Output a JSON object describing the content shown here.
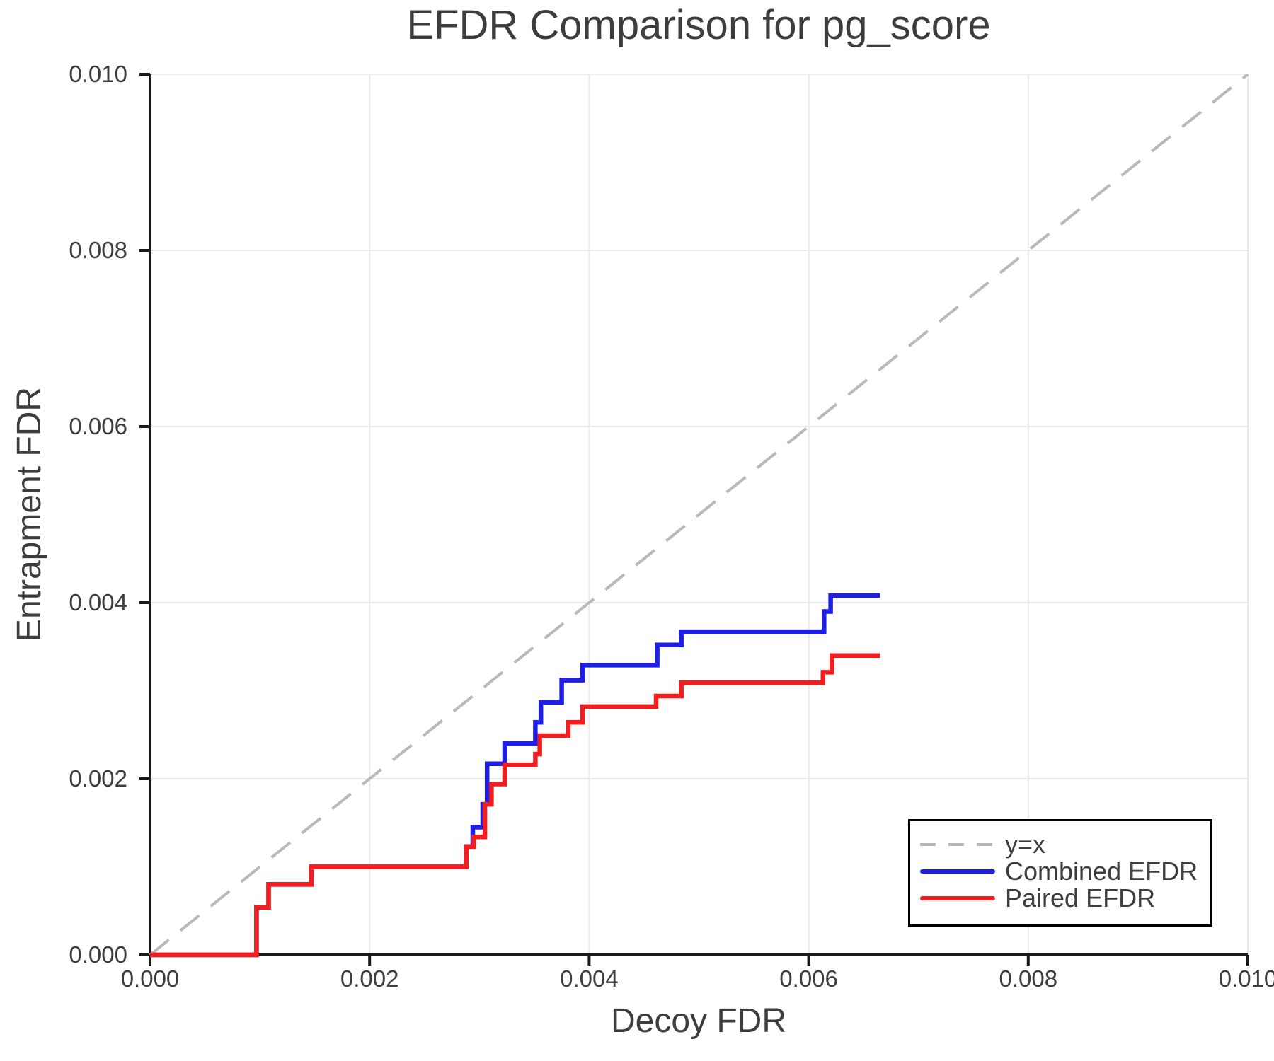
{
  "chart_data": {
    "type": "line",
    "title": "EFDR Comparison for pg_score",
    "xlabel": "Decoy FDR",
    "ylabel": "Entrapment FDR",
    "xlim": [
      0.0,
      0.01
    ],
    "ylim": [
      0.0,
      0.01
    ],
    "grid": true,
    "legend_position": "lower right",
    "x_ticks": [
      0.0,
      0.002,
      0.004,
      0.006,
      0.008,
      0.01
    ],
    "x_tick_labels": [
      "0.000",
      "0.002",
      "0.004",
      "0.006",
      "0.008",
      "0.010"
    ],
    "y_ticks": [
      0.0,
      0.002,
      0.004,
      0.006,
      0.008,
      0.01
    ],
    "y_tick_labels": [
      "0.000",
      "0.002",
      "0.004",
      "0.006",
      "0.008",
      "0.010"
    ],
    "colors": {
      "identity": "#b9b9b9",
      "combined": "#1e1ee6",
      "paired": "#f01e1e",
      "text": "#3d3d3d",
      "grid": "#e9e9e9",
      "axis": "#1a1a1a"
    },
    "series": [
      {
        "name": "y=x",
        "style": "dashed",
        "color_key": "identity",
        "points": [
          [
            0.0,
            0.0
          ],
          [
            0.01,
            0.01
          ]
        ]
      },
      {
        "name": "Combined EFDR",
        "style": "solid",
        "color_key": "combined",
        "points": [
          [
            0.0,
            0.0
          ],
          [
            0.00097,
            0.0
          ],
          [
            0.00097,
            0.00054
          ],
          [
            0.00108,
            0.00054
          ],
          [
            0.00108,
            0.0008
          ],
          [
            0.00147,
            0.0008
          ],
          [
            0.00147,
            0.001
          ],
          [
            0.00288,
            0.001
          ],
          [
            0.00288,
            0.00123
          ],
          [
            0.00294,
            0.00123
          ],
          [
            0.00294,
            0.00145
          ],
          [
            0.00303,
            0.00145
          ],
          [
            0.00303,
            0.00171
          ],
          [
            0.00307,
            0.00171
          ],
          [
            0.00307,
            0.00217
          ],
          [
            0.00323,
            0.00217
          ],
          [
            0.00323,
            0.0024
          ],
          [
            0.00351,
            0.0024
          ],
          [
            0.00351,
            0.00264
          ],
          [
            0.00356,
            0.00264
          ],
          [
            0.00356,
            0.00287
          ],
          [
            0.00375,
            0.00287
          ],
          [
            0.00375,
            0.00312
          ],
          [
            0.00394,
            0.00312
          ],
          [
            0.00394,
            0.00329
          ],
          [
            0.00462,
            0.00329
          ],
          [
            0.00462,
            0.00352
          ],
          [
            0.00484,
            0.00352
          ],
          [
            0.00484,
            0.00367
          ],
          [
            0.00614,
            0.00367
          ],
          [
            0.00614,
            0.0039
          ],
          [
            0.0062,
            0.0039
          ],
          [
            0.0062,
            0.00408
          ],
          [
            0.00665,
            0.00408
          ]
        ]
      },
      {
        "name": "Paired EFDR",
        "style": "solid",
        "color_key": "paired",
        "points": [
          [
            0.0,
            0.0
          ],
          [
            0.00097,
            0.0
          ],
          [
            0.00097,
            0.00054
          ],
          [
            0.00108,
            0.00054
          ],
          [
            0.00108,
            0.0008
          ],
          [
            0.00147,
            0.0008
          ],
          [
            0.00147,
            0.001
          ],
          [
            0.00288,
            0.001
          ],
          [
            0.00288,
            0.00123
          ],
          [
            0.00295,
            0.00123
          ],
          [
            0.00295,
            0.00134
          ],
          [
            0.00305,
            0.00134
          ],
          [
            0.00305,
            0.00171
          ],
          [
            0.00311,
            0.00171
          ],
          [
            0.00311,
            0.00194
          ],
          [
            0.00323,
            0.00194
          ],
          [
            0.00323,
            0.00216
          ],
          [
            0.00351,
            0.00216
          ],
          [
            0.00351,
            0.00228
          ],
          [
            0.00355,
            0.00228
          ],
          [
            0.00355,
            0.00249
          ],
          [
            0.00381,
            0.00249
          ],
          [
            0.00381,
            0.00264
          ],
          [
            0.00394,
            0.00264
          ],
          [
            0.00394,
            0.00282
          ],
          [
            0.00461,
            0.00282
          ],
          [
            0.00461,
            0.00294
          ],
          [
            0.00484,
            0.00294
          ],
          [
            0.00484,
            0.00309
          ],
          [
            0.00613,
            0.00309
          ],
          [
            0.00613,
            0.00321
          ],
          [
            0.00621,
            0.00321
          ],
          [
            0.00621,
            0.0034
          ],
          [
            0.00665,
            0.0034
          ]
        ]
      }
    ]
  }
}
